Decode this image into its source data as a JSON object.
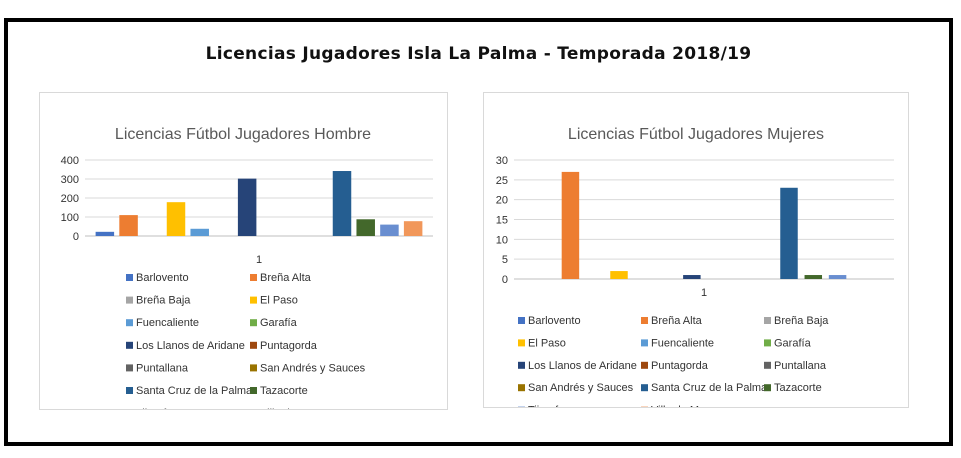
{
  "page": {
    "title": "Licencias Jugadores Isla La Palma - Temporada 2018/19"
  },
  "chart_data": [
    {
      "type": "bar",
      "title": "Licencias Fútbol Jugadores Hombre",
      "categories": [
        "1"
      ],
      "ylim": [
        0,
        400
      ],
      "yticks": [
        0,
        100,
        200,
        300,
        400
      ],
      "grid": true,
      "legend_position": "bottom",
      "series": [
        {
          "name": "Barlovento",
          "values": [
            22
          ],
          "color": "#4472C4"
        },
        {
          "name": "Breña Alta",
          "values": [
            110
          ],
          "color": "#ED7D31"
        },
        {
          "name": "Breña Baja",
          "values": [
            0
          ],
          "color": "#A5A5A5"
        },
        {
          "name": "El Paso",
          "values": [
            178
          ],
          "color": "#FFC000"
        },
        {
          "name": "Fuencaliente",
          "values": [
            38
          ],
          "color": "#5B9BD5"
        },
        {
          "name": "Garafía",
          "values": [
            0
          ],
          "color": "#70AD47"
        },
        {
          "name": "Los Llanos de Aridane",
          "values": [
            302
          ],
          "color": "#264478"
        },
        {
          "name": "Puntagorda",
          "values": [
            0
          ],
          "color": "#9E480E"
        },
        {
          "name": "Puntallana",
          "values": [
            0
          ],
          "color": "#636363"
        },
        {
          "name": "San Andrés y Sauces",
          "values": [
            0
          ],
          "color": "#997300"
        },
        {
          "name": "Santa Cruz de la Palma",
          "values": [
            342
          ],
          "color": "#255E91"
        },
        {
          "name": "Tazacorte",
          "values": [
            88
          ],
          "color": "#43682B"
        },
        {
          "name": "Tijarafe",
          "values": [
            60
          ],
          "color": "#698ED0"
        },
        {
          "name": "Villa de Mazo",
          "values": [
            78
          ],
          "color": "#F1975A"
        }
      ]
    },
    {
      "type": "bar",
      "title": "Licencias Fútbol Jugadores Mujeres",
      "categories": [
        "1"
      ],
      "ylim": [
        0,
        30
      ],
      "yticks": [
        0,
        5,
        10,
        15,
        20,
        25,
        30
      ],
      "grid": true,
      "legend_position": "bottom",
      "series": [
        {
          "name": "Barlovento",
          "values": [
            0
          ],
          "color": "#4472C4"
        },
        {
          "name": "Breña Alta",
          "values": [
            27
          ],
          "color": "#ED7D31"
        },
        {
          "name": "Breña Baja",
          "values": [
            0
          ],
          "color": "#A5A5A5"
        },
        {
          "name": "El Paso",
          "values": [
            2
          ],
          "color": "#FFC000"
        },
        {
          "name": "Fuencaliente",
          "values": [
            0
          ],
          "color": "#5B9BD5"
        },
        {
          "name": "Garafía",
          "values": [
            0
          ],
          "color": "#70AD47"
        },
        {
          "name": "Los Llanos de Aridane",
          "values": [
            1
          ],
          "color": "#264478"
        },
        {
          "name": "Puntagorda",
          "values": [
            0
          ],
          "color": "#9E480E"
        },
        {
          "name": "Puntallana",
          "values": [
            0
          ],
          "color": "#636363"
        },
        {
          "name": "San Andrés y Sauces",
          "values": [
            0
          ],
          "color": "#997300"
        },
        {
          "name": "Santa Cruz de la Palma",
          "values": [
            23
          ],
          "color": "#255E91"
        },
        {
          "name": "Tazacorte",
          "values": [
            1
          ],
          "color": "#43682B"
        },
        {
          "name": "Tijarafe",
          "values": [
            1
          ],
          "color": "#698ED0"
        },
        {
          "name": "Villa de Mazo",
          "values": [
            0
          ],
          "color": "#F1975A"
        }
      ]
    }
  ]
}
